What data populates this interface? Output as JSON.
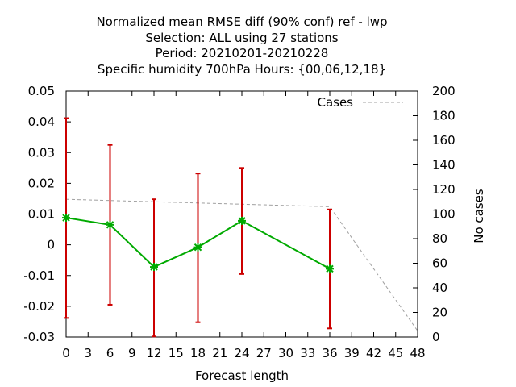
{
  "chart_data": {
    "type": "line",
    "title_lines": [
      "Normalized mean RMSE diff (90% conf) ref - lwp",
      "Selection: ALL using    27 stations",
      "Period: 20210201-20210228",
      "Specific humidity 700hPa   Hours: {00,06,12,18}"
    ],
    "xlabel": "Forecast length",
    "ylabel": "",
    "y2label": "No cases",
    "xlim": [
      0,
      48
    ],
    "ylim": [
      -0.03,
      0.05
    ],
    "y2lim": [
      0,
      200
    ],
    "x_ticks": [
      0,
      3,
      6,
      9,
      12,
      15,
      18,
      21,
      24,
      27,
      30,
      33,
      36,
      39,
      42,
      45,
      48
    ],
    "y_ticks": [
      -0.03,
      -0.02,
      -0.01,
      0,
      0.01,
      0.02,
      0.03,
      0.04,
      0.05
    ],
    "y_tick_labels": [
      "-0.03",
      "-0.02",
      "-0.01",
      "0",
      "0.01",
      "0.02",
      "0.03",
      "0.04",
      "0.05"
    ],
    "y2_ticks": [
      0,
      20,
      40,
      60,
      80,
      100,
      120,
      140,
      160,
      180,
      200
    ],
    "grid": false,
    "legend_position": "top-right",
    "series": [
      {
        "name": "Cases",
        "axis": "y2",
        "color": "#a0a0a0",
        "style": "dashed",
        "x": [
          0,
          6,
          12,
          18,
          24,
          30,
          36,
          48
        ],
        "values": [
          112,
          111,
          110,
          109,
          108,
          107,
          106,
          5
        ]
      },
      {
        "axis": "y",
        "color": "#00aa00",
        "marker_color": "#00aa00",
        "x": [
          0,
          6,
          12,
          18,
          24,
          36
        ],
        "values": [
          0.0088,
          0.0065,
          -0.0072,
          -0.0008,
          0.0078,
          -0.0078
        ],
        "error_low": [
          -0.0238,
          -0.0195,
          -0.0298,
          -0.0252,
          -0.0095,
          -0.0272
        ],
        "error_high": [
          0.0412,
          0.0325,
          0.0148,
          0.0232,
          0.025,
          0.0115
        ],
        "error_color": "#cc0000"
      }
    ]
  }
}
